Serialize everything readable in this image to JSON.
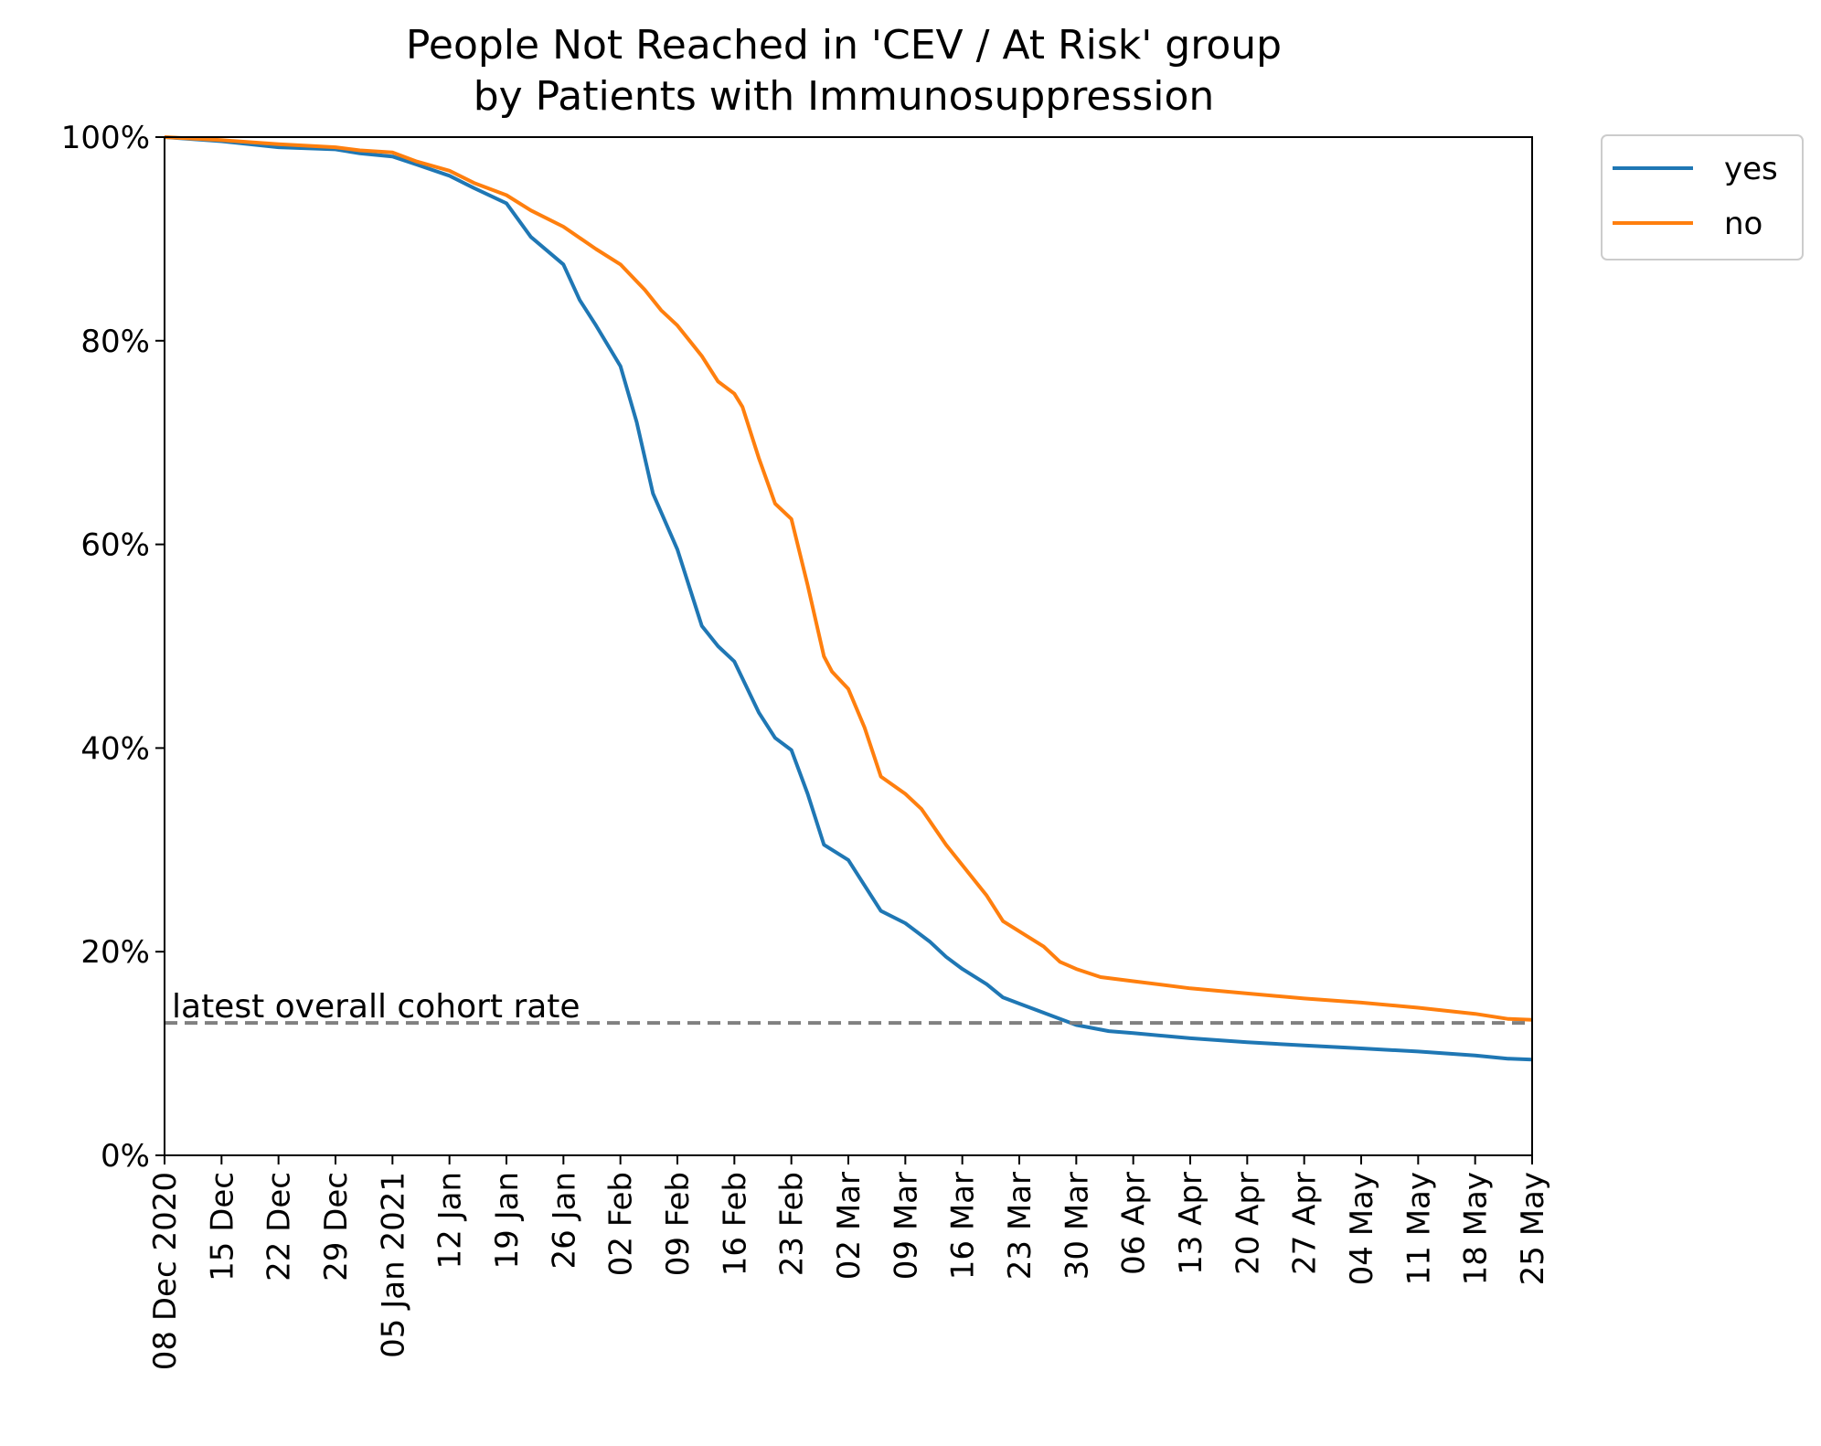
{
  "chart_data": {
    "type": "line",
    "title": "People Not Reached in 'CEV / At Risk' group",
    "subtitle": "by Patients with Immunosuppression",
    "xlabel": "",
    "ylabel": "",
    "x_range": [
      "2020-12-08",
      "2021-05-25"
    ],
    "ylim": [
      0,
      100
    ],
    "y_ticks": [
      {
        "value": 0,
        "label": "0%"
      },
      {
        "value": 20,
        "label": "20%"
      },
      {
        "value": 40,
        "label": "40%"
      },
      {
        "value": 60,
        "label": "60%"
      },
      {
        "value": 80,
        "label": "80%"
      },
      {
        "value": 100,
        "label": "100%"
      }
    ],
    "x_ticks": [
      {
        "date": "2020-12-08",
        "label": "08 Dec 2020"
      },
      {
        "date": "2020-12-15",
        "label": "15 Dec"
      },
      {
        "date": "2020-12-22",
        "label": "22 Dec"
      },
      {
        "date": "2020-12-29",
        "label": "29 Dec"
      },
      {
        "date": "2021-01-05",
        "label": "05 Jan 2021"
      },
      {
        "date": "2021-01-12",
        "label": "12 Jan"
      },
      {
        "date": "2021-01-19",
        "label": "19 Jan"
      },
      {
        "date": "2021-01-26",
        "label": "26 Jan"
      },
      {
        "date": "2021-02-02",
        "label": "02 Feb"
      },
      {
        "date": "2021-02-09",
        "label": "09 Feb"
      },
      {
        "date": "2021-02-16",
        "label": "16 Feb"
      },
      {
        "date": "2021-02-23",
        "label": "23 Feb"
      },
      {
        "date": "2021-03-02",
        "label": "02 Mar"
      },
      {
        "date": "2021-03-09",
        "label": "09 Mar"
      },
      {
        "date": "2021-03-16",
        "label": "16 Mar"
      },
      {
        "date": "2021-03-23",
        "label": "23 Mar"
      },
      {
        "date": "2021-03-30",
        "label": "30 Mar"
      },
      {
        "date": "2021-04-06",
        "label": "06 Apr"
      },
      {
        "date": "2021-04-13",
        "label": "13 Apr"
      },
      {
        "date": "2021-04-20",
        "label": "20 Apr"
      },
      {
        "date": "2021-04-27",
        "label": "27 Apr"
      },
      {
        "date": "2021-05-04",
        "label": "04 May"
      },
      {
        "date": "2021-05-11",
        "label": "11 May"
      },
      {
        "date": "2021-05-18",
        "label": "18 May"
      },
      {
        "date": "2021-05-25",
        "label": "25 May"
      }
    ],
    "grid": false,
    "legend": {
      "placement": "outside-top-right"
    },
    "series": [
      {
        "name": "yes",
        "color": "#1f77b4",
        "points": [
          [
            "2020-12-08",
            100
          ],
          [
            "2020-12-15",
            99.6
          ],
          [
            "2020-12-22",
            99.0
          ],
          [
            "2020-12-29",
            98.8
          ],
          [
            "2021-01-01",
            98.4
          ],
          [
            "2021-01-05",
            98.1
          ],
          [
            "2021-01-08",
            97.3
          ],
          [
            "2021-01-12",
            96.2
          ],
          [
            "2021-01-15",
            95.0
          ],
          [
            "2021-01-19",
            93.5
          ],
          [
            "2021-01-22",
            90.2
          ],
          [
            "2021-01-26",
            87.5
          ],
          [
            "2021-01-28",
            84.0
          ],
          [
            "2021-01-30",
            81.5
          ],
          [
            "2021-02-02",
            77.5
          ],
          [
            "2021-02-04",
            72.0
          ],
          [
            "2021-02-06",
            65.0
          ],
          [
            "2021-02-09",
            59.5
          ],
          [
            "2021-02-12",
            52.0
          ],
          [
            "2021-02-14",
            50.0
          ],
          [
            "2021-02-16",
            48.5
          ],
          [
            "2021-02-19",
            43.5
          ],
          [
            "2021-02-21",
            41.0
          ],
          [
            "2021-02-23",
            39.8
          ],
          [
            "2021-02-25",
            35.5
          ],
          [
            "2021-02-27",
            30.5
          ],
          [
            "2021-03-02",
            29.0
          ],
          [
            "2021-03-04",
            26.5
          ],
          [
            "2021-03-06",
            24.0
          ],
          [
            "2021-03-09",
            22.8
          ],
          [
            "2021-03-12",
            21.0
          ],
          [
            "2021-03-14",
            19.5
          ],
          [
            "2021-03-16",
            18.3
          ],
          [
            "2021-03-19",
            16.8
          ],
          [
            "2021-03-21",
            15.5
          ],
          [
            "2021-03-23",
            14.9
          ],
          [
            "2021-03-26",
            14.0
          ],
          [
            "2021-03-30",
            12.8
          ],
          [
            "2021-04-03",
            12.2
          ],
          [
            "2021-04-06",
            12.0
          ],
          [
            "2021-04-13",
            11.5
          ],
          [
            "2021-04-20",
            11.1
          ],
          [
            "2021-04-27",
            10.8
          ],
          [
            "2021-05-04",
            10.5
          ],
          [
            "2021-05-11",
            10.2
          ],
          [
            "2021-05-18",
            9.8
          ],
          [
            "2021-05-22",
            9.5
          ],
          [
            "2021-05-25",
            9.4
          ]
        ]
      },
      {
        "name": "no",
        "color": "#ff7f0e",
        "points": [
          [
            "2020-12-08",
            100
          ],
          [
            "2020-12-15",
            99.7
          ],
          [
            "2020-12-22",
            99.3
          ],
          [
            "2020-12-29",
            99.0
          ],
          [
            "2021-01-01",
            98.7
          ],
          [
            "2021-01-05",
            98.5
          ],
          [
            "2021-01-08",
            97.6
          ],
          [
            "2021-01-12",
            96.7
          ],
          [
            "2021-01-15",
            95.5
          ],
          [
            "2021-01-19",
            94.3
          ],
          [
            "2021-01-22",
            92.8
          ],
          [
            "2021-01-26",
            91.2
          ],
          [
            "2021-01-30",
            89.0
          ],
          [
            "2021-02-02",
            87.5
          ],
          [
            "2021-02-05",
            85.0
          ],
          [
            "2021-02-07",
            83.0
          ],
          [
            "2021-02-09",
            81.5
          ],
          [
            "2021-02-12",
            78.5
          ],
          [
            "2021-02-14",
            76.0
          ],
          [
            "2021-02-16",
            74.8
          ],
          [
            "2021-02-17",
            73.5
          ],
          [
            "2021-02-19",
            68.5
          ],
          [
            "2021-02-21",
            64.0
          ],
          [
            "2021-02-23",
            62.5
          ],
          [
            "2021-02-25",
            56.0
          ],
          [
            "2021-02-27",
            49.0
          ],
          [
            "2021-02-28",
            47.5
          ],
          [
            "2021-03-02",
            45.8
          ],
          [
            "2021-03-04",
            42.0
          ],
          [
            "2021-03-06",
            37.2
          ],
          [
            "2021-03-09",
            35.5
          ],
          [
            "2021-03-11",
            34.0
          ],
          [
            "2021-03-14",
            30.5
          ],
          [
            "2021-03-16",
            28.5
          ],
          [
            "2021-03-19",
            25.5
          ],
          [
            "2021-03-21",
            23.0
          ],
          [
            "2021-03-23",
            22.0
          ],
          [
            "2021-03-26",
            20.5
          ],
          [
            "2021-03-28",
            19.0
          ],
          [
            "2021-03-30",
            18.3
          ],
          [
            "2021-04-02",
            17.5
          ],
          [
            "2021-04-06",
            17.1
          ],
          [
            "2021-04-13",
            16.4
          ],
          [
            "2021-04-20",
            15.9
          ],
          [
            "2021-04-27",
            15.4
          ],
          [
            "2021-05-04",
            15.0
          ],
          [
            "2021-05-11",
            14.5
          ],
          [
            "2021-05-18",
            13.9
          ],
          [
            "2021-05-22",
            13.4
          ],
          [
            "2021-05-25",
            13.3
          ]
        ]
      }
    ],
    "reference_line": {
      "value": 13,
      "label": "latest overall cohort rate",
      "color": "#808080",
      "style": "dashed"
    }
  }
}
